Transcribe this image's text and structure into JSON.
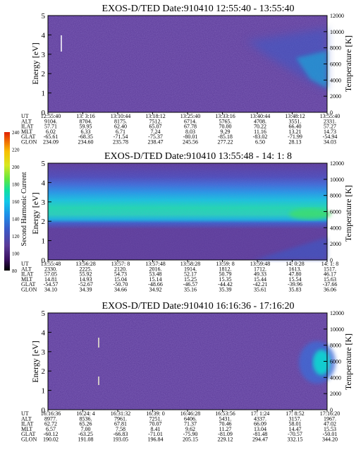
{
  "colors": {
    "background_purple": "#5a3a98",
    "sheet": "#ffffff",
    "ink": "#000000",
    "colorbar": [
      "#000000",
      "#3a1060",
      "#5a3a98",
      "#3a5ac8",
      "#1e8ee8",
      "#10c8e8",
      "#10e0a0",
      "#60e840",
      "#d8e820",
      "#f8c000",
      "#f07000",
      "#e02000"
    ]
  },
  "colorbar": {
    "label": "Second Harmonic Current",
    "ticks": [
      "240",
      "220",
      "200",
      "180",
      "160",
      "140",
      "120",
      "100",
      "80"
    ]
  },
  "panels": [
    {
      "title": "EXOS-D/TED   Date:910410   12:55:40 - 13:55:40",
      "ylabel_left": "Energy [eV]",
      "ylabel_right": "Temperature [K]",
      "left_ticks": [
        "5",
        "4",
        "3",
        "2",
        "1",
        "0"
      ],
      "right_ticks": [
        "12000",
        "10000",
        "8000",
        "6000",
        "4000",
        "2000",
        "0"
      ],
      "table": {
        "labels": [
          "UT",
          "ALT",
          "ILAT",
          "MLT",
          "GLAT",
          "GLON"
        ],
        "columns": [
          [
            "12:55:40",
            "9104.",
            "57.71",
            "6.02",
            "-65.61",
            "234.09"
          ],
          [
            "13: 3:16",
            "8704.",
            "59.95",
            "6.33",
            "-68.35",
            "234.60"
          ],
          [
            "13:10:44",
            "8175.",
            "62.40",
            "6.71",
            "-71.54",
            "235.78"
          ],
          [
            "13:18:12",
            "7512.",
            "65.07",
            "7.24",
            "-75.37",
            "238.47"
          ],
          [
            "13:25:40",
            "6714.",
            "67.78",
            "8.03",
            "-80.01",
            "245.56"
          ],
          [
            "13:33:16",
            "5765.",
            "70.00",
            "9.29",
            "-85.18",
            "277.22"
          ],
          [
            "13:40:44",
            "4708.",
            "70.22",
            "11.16",
            "-83.02",
            "6.50"
          ],
          [
            "13:48:12",
            "3551.",
            "66.40",
            "13.21",
            "-71.99",
            "28.13"
          ],
          [
            "13:55:40",
            "2331.",
            "57.27",
            "14.73",
            "-54.94",
            "34.03"
          ]
        ]
      }
    },
    {
      "title": "EXOS-D/TED   Date:910410   13:55:48 - 14: 1: 8",
      "ylabel_left": "Energy [eV]",
      "ylabel_right": "Temperature [K]",
      "left_ticks": [
        "5",
        "4",
        "3",
        "2",
        "1",
        "0"
      ],
      "right_ticks": [
        "12000",
        "10000",
        "8000",
        "6000",
        "4000",
        "2000",
        "0"
      ],
      "table": {
        "labels": [
          "UT",
          "ALT",
          "ILAT",
          "MLT",
          "GLAT",
          "GLON"
        ],
        "columns": [
          [
            "13:55:48",
            "2330.",
            "57.05",
            "14.81",
            "-54.57",
            "34.10"
          ],
          [
            "13:56:28",
            "2225.",
            "55.92",
            "14.93",
            "-52.67",
            "34.39"
          ],
          [
            "13:57: 8",
            "2120.",
            "54.73",
            "15.04",
            "-50.70",
            "34.66"
          ],
          [
            "13:57:48",
            "2016.",
            "53.48",
            "15.14",
            "-48.66",
            "34.92"
          ],
          [
            "13:58:28",
            "1914.",
            "52.17",
            "15.25",
            "-46.57",
            "35.16"
          ],
          [
            "13:59: 8",
            "1812.",
            "50.79",
            "15.35",
            "-44.42",
            "35.39"
          ],
          [
            "13:59:48",
            "1712.",
            "49.33",
            "15.44",
            "-42.21",
            "35.61"
          ],
          [
            "14: 0:28",
            "1613.",
            "47.80",
            "15.54",
            "-39.96",
            "35.83"
          ],
          [
            "14: 1: 8",
            "1517.",
            "46.17",
            "15.63",
            "-37.66",
            "36.06"
          ]
        ]
      }
    },
    {
      "title": "EXOS-D/TED   Date:910410   16:16:36 - 17:16:20",
      "ylabel_left": "Energy [eV]",
      "ylabel_right": "Temperature [K]",
      "left_ticks": [
        "5",
        "4",
        "3",
        "2",
        "1",
        "0"
      ],
      "right_ticks": [
        "12000",
        "10000",
        "8000",
        "6000",
        "4000",
        "2000",
        "0"
      ],
      "table": {
        "labels": [
          "UT",
          "ALT",
          "ILAT",
          "MLT",
          "GLAT",
          "GLON"
        ],
        "columns": [
          [
            "16:16:36",
            "8977.",
            "62.72",
            "6.57",
            "-60.12",
            "190.02"
          ],
          [
            "16:24: 4",
            "8536.",
            "65.26",
            "7.00",
            "-63.25",
            "191.08"
          ],
          [
            "16:31:32",
            "7961.",
            "67.81",
            "7.58",
            "-66.83",
            "193.05"
          ],
          [
            "16:39: 0",
            "7251.",
            "70.07",
            "8.41",
            "-71.01",
            "196.84"
          ],
          [
            "16:46:28",
            "6406.",
            "71.37",
            "9.62",
            "-75.90",
            "205.15"
          ],
          [
            "16:53:56",
            "5431.",
            "70.46",
            "11.27",
            "-81.09",
            "229.12"
          ],
          [
            "17: 1:24",
            "4337.",
            "66.09",
            "13.04",
            "-81.48",
            "294.47"
          ],
          [
            "17: 8:52",
            "3157.",
            "58.01",
            "14.47",
            "-70.57",
            "332.15"
          ],
          [
            "17:16:20",
            "1967.",
            "47.02",
            "15.53",
            "-50.01",
            "344.20"
          ]
        ]
      }
    }
  ],
  "chart_data": [
    {
      "type": "heatmap",
      "title": "EXOS-D/TED   Date:910410   12:55:40 - 13:55:40",
      "xlabel": "UT",
      "ylabel": "Energy [eV]",
      "ylabel_right": "Temperature [K]",
      "ylim": [
        0,
        5
      ],
      "ylim_right": [
        0,
        12000
      ],
      "x": [
        "12:55:40",
        "13: 3:16",
        "13:10:44",
        "13:18:12",
        "13:25:40",
        "13:33:16",
        "13:40:44",
        "13:48:12",
        "13:55:40"
      ],
      "colorbar_label": "Second Harmonic Current",
      "colorbar_range": [
        80,
        240
      ]
    },
    {
      "type": "heatmap",
      "title": "EXOS-D/TED   Date:910410   13:55:48 - 14: 1: 8",
      "xlabel": "UT",
      "ylabel": "Energy [eV]",
      "ylabel_right": "Temperature [K]",
      "ylim": [
        0,
        5
      ],
      "ylim_right": [
        0,
        12000
      ],
      "x": [
        "13:55:48",
        "13:56:28",
        "13:57: 8",
        "13:57:48",
        "13:58:28",
        "13:59: 8",
        "13:59:48",
        "14: 0:28",
        "14: 1: 8"
      ],
      "colorbar_label": "Second Harmonic Current",
      "colorbar_range": [
        80,
        240
      ]
    },
    {
      "type": "heatmap",
      "title": "EXOS-D/TED   Date:910410   16:16:36 - 17:16:20",
      "xlabel": "UT",
      "ylabel": "Energy [eV]",
      "ylabel_right": "Temperature [K]",
      "ylim": [
        0,
        5
      ],
      "ylim_right": [
        0,
        12000
      ],
      "x": [
        "16:16:36",
        "16:24: 4",
        "16:31:32",
        "16:39: 0",
        "16:46:28",
        "16:53:56",
        "17: 1:24",
        "17: 8:52",
        "17:16:20"
      ],
      "colorbar_label": "Second Harmonic Current",
      "colorbar_range": [
        80,
        240
      ]
    }
  ]
}
